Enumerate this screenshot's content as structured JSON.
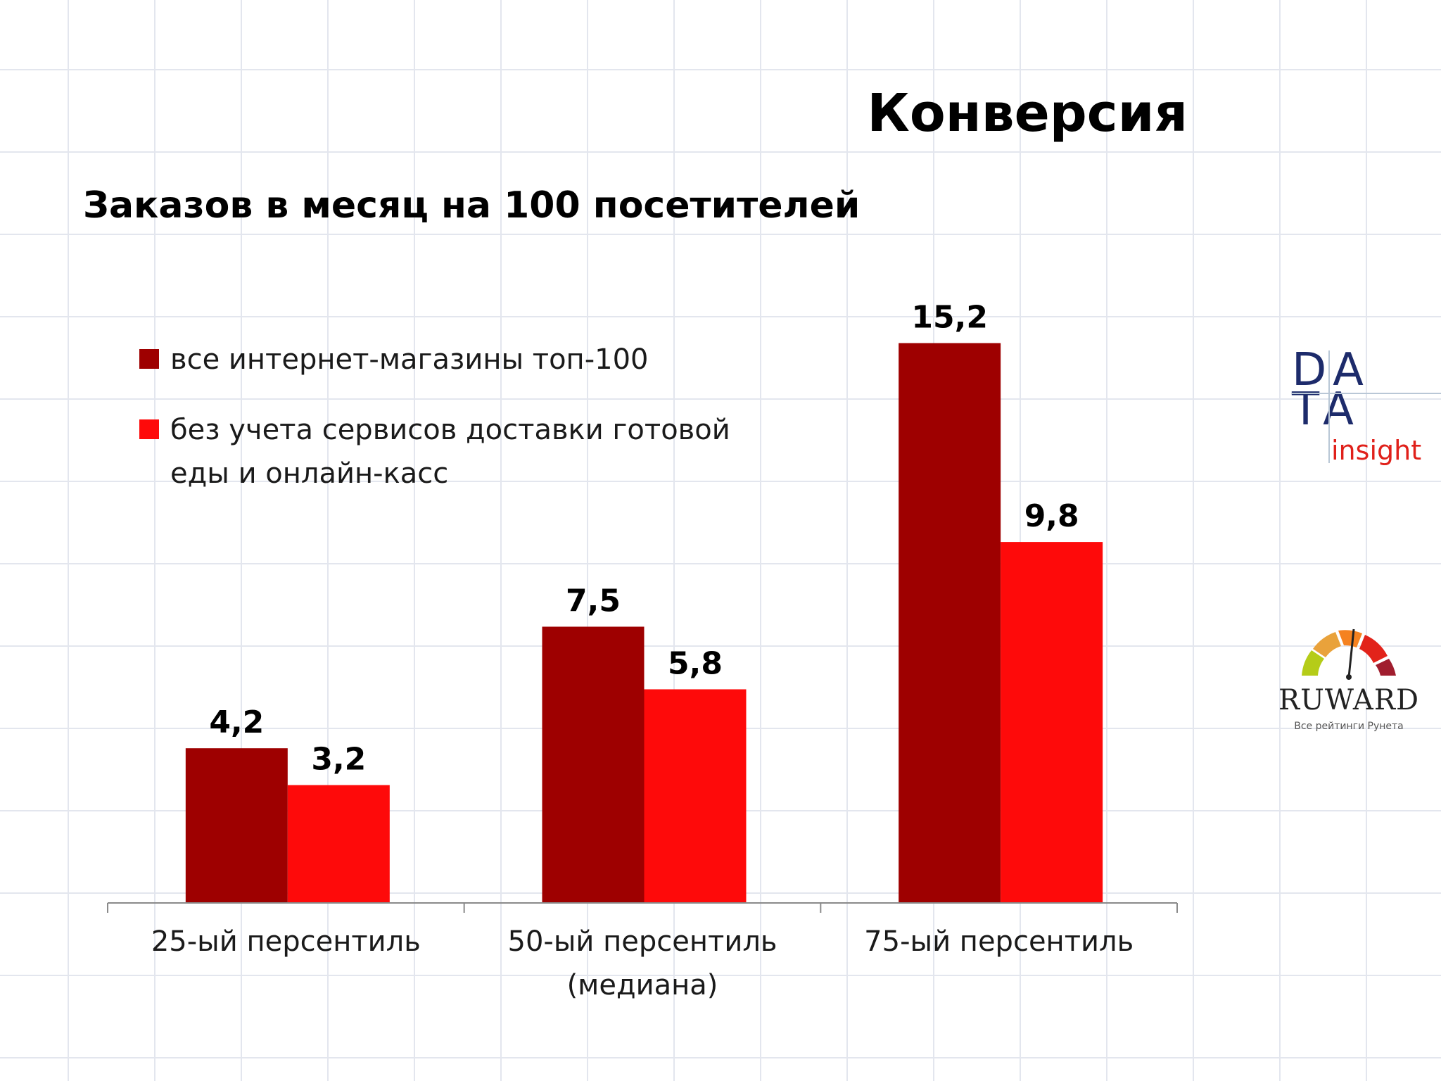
{
  "slide": {
    "title": "Конверсия"
  },
  "logos": {
    "data_insight": {
      "line1": "DA",
      "line2": "TA",
      "sub": "insight"
    },
    "ruward": {
      "word": "RUWARD",
      "tagline": "Все рейтинги Рунета"
    }
  },
  "chart_data": {
    "type": "bar",
    "title": "Заказов в месяц на 100 посетителей",
    "xlabel": "",
    "ylabel": "",
    "categories": [
      "25-ый персентиль",
      "50-ый персентиль (медиана)",
      "75-ый персентиль"
    ],
    "category_lines": [
      [
        "25-ый персентиль"
      ],
      [
        "50-ый персентиль",
        "(медиана)"
      ],
      [
        "75-ый персентиль"
      ]
    ],
    "series": [
      {
        "name": "все интернет-магазины топ-100",
        "values": [
          4.2,
          7.5,
          15.2
        ],
        "labels": [
          "4,2",
          "7,5",
          "15,2"
        ],
        "color": "#9e0000"
      },
      {
        "name": "без учета сервисов доставки готовой еды и онлайн-касс",
        "values": [
          3.2,
          5.8,
          9.8
        ],
        "labels": [
          "3,2",
          "5,8",
          "9,8"
        ],
        "color": "#fe0a0a"
      }
    ],
    "ylim": [
      0,
      16.05
    ],
    "grid": false,
    "legend_position": "top-left",
    "axis_color": "#8a8a8a"
  }
}
